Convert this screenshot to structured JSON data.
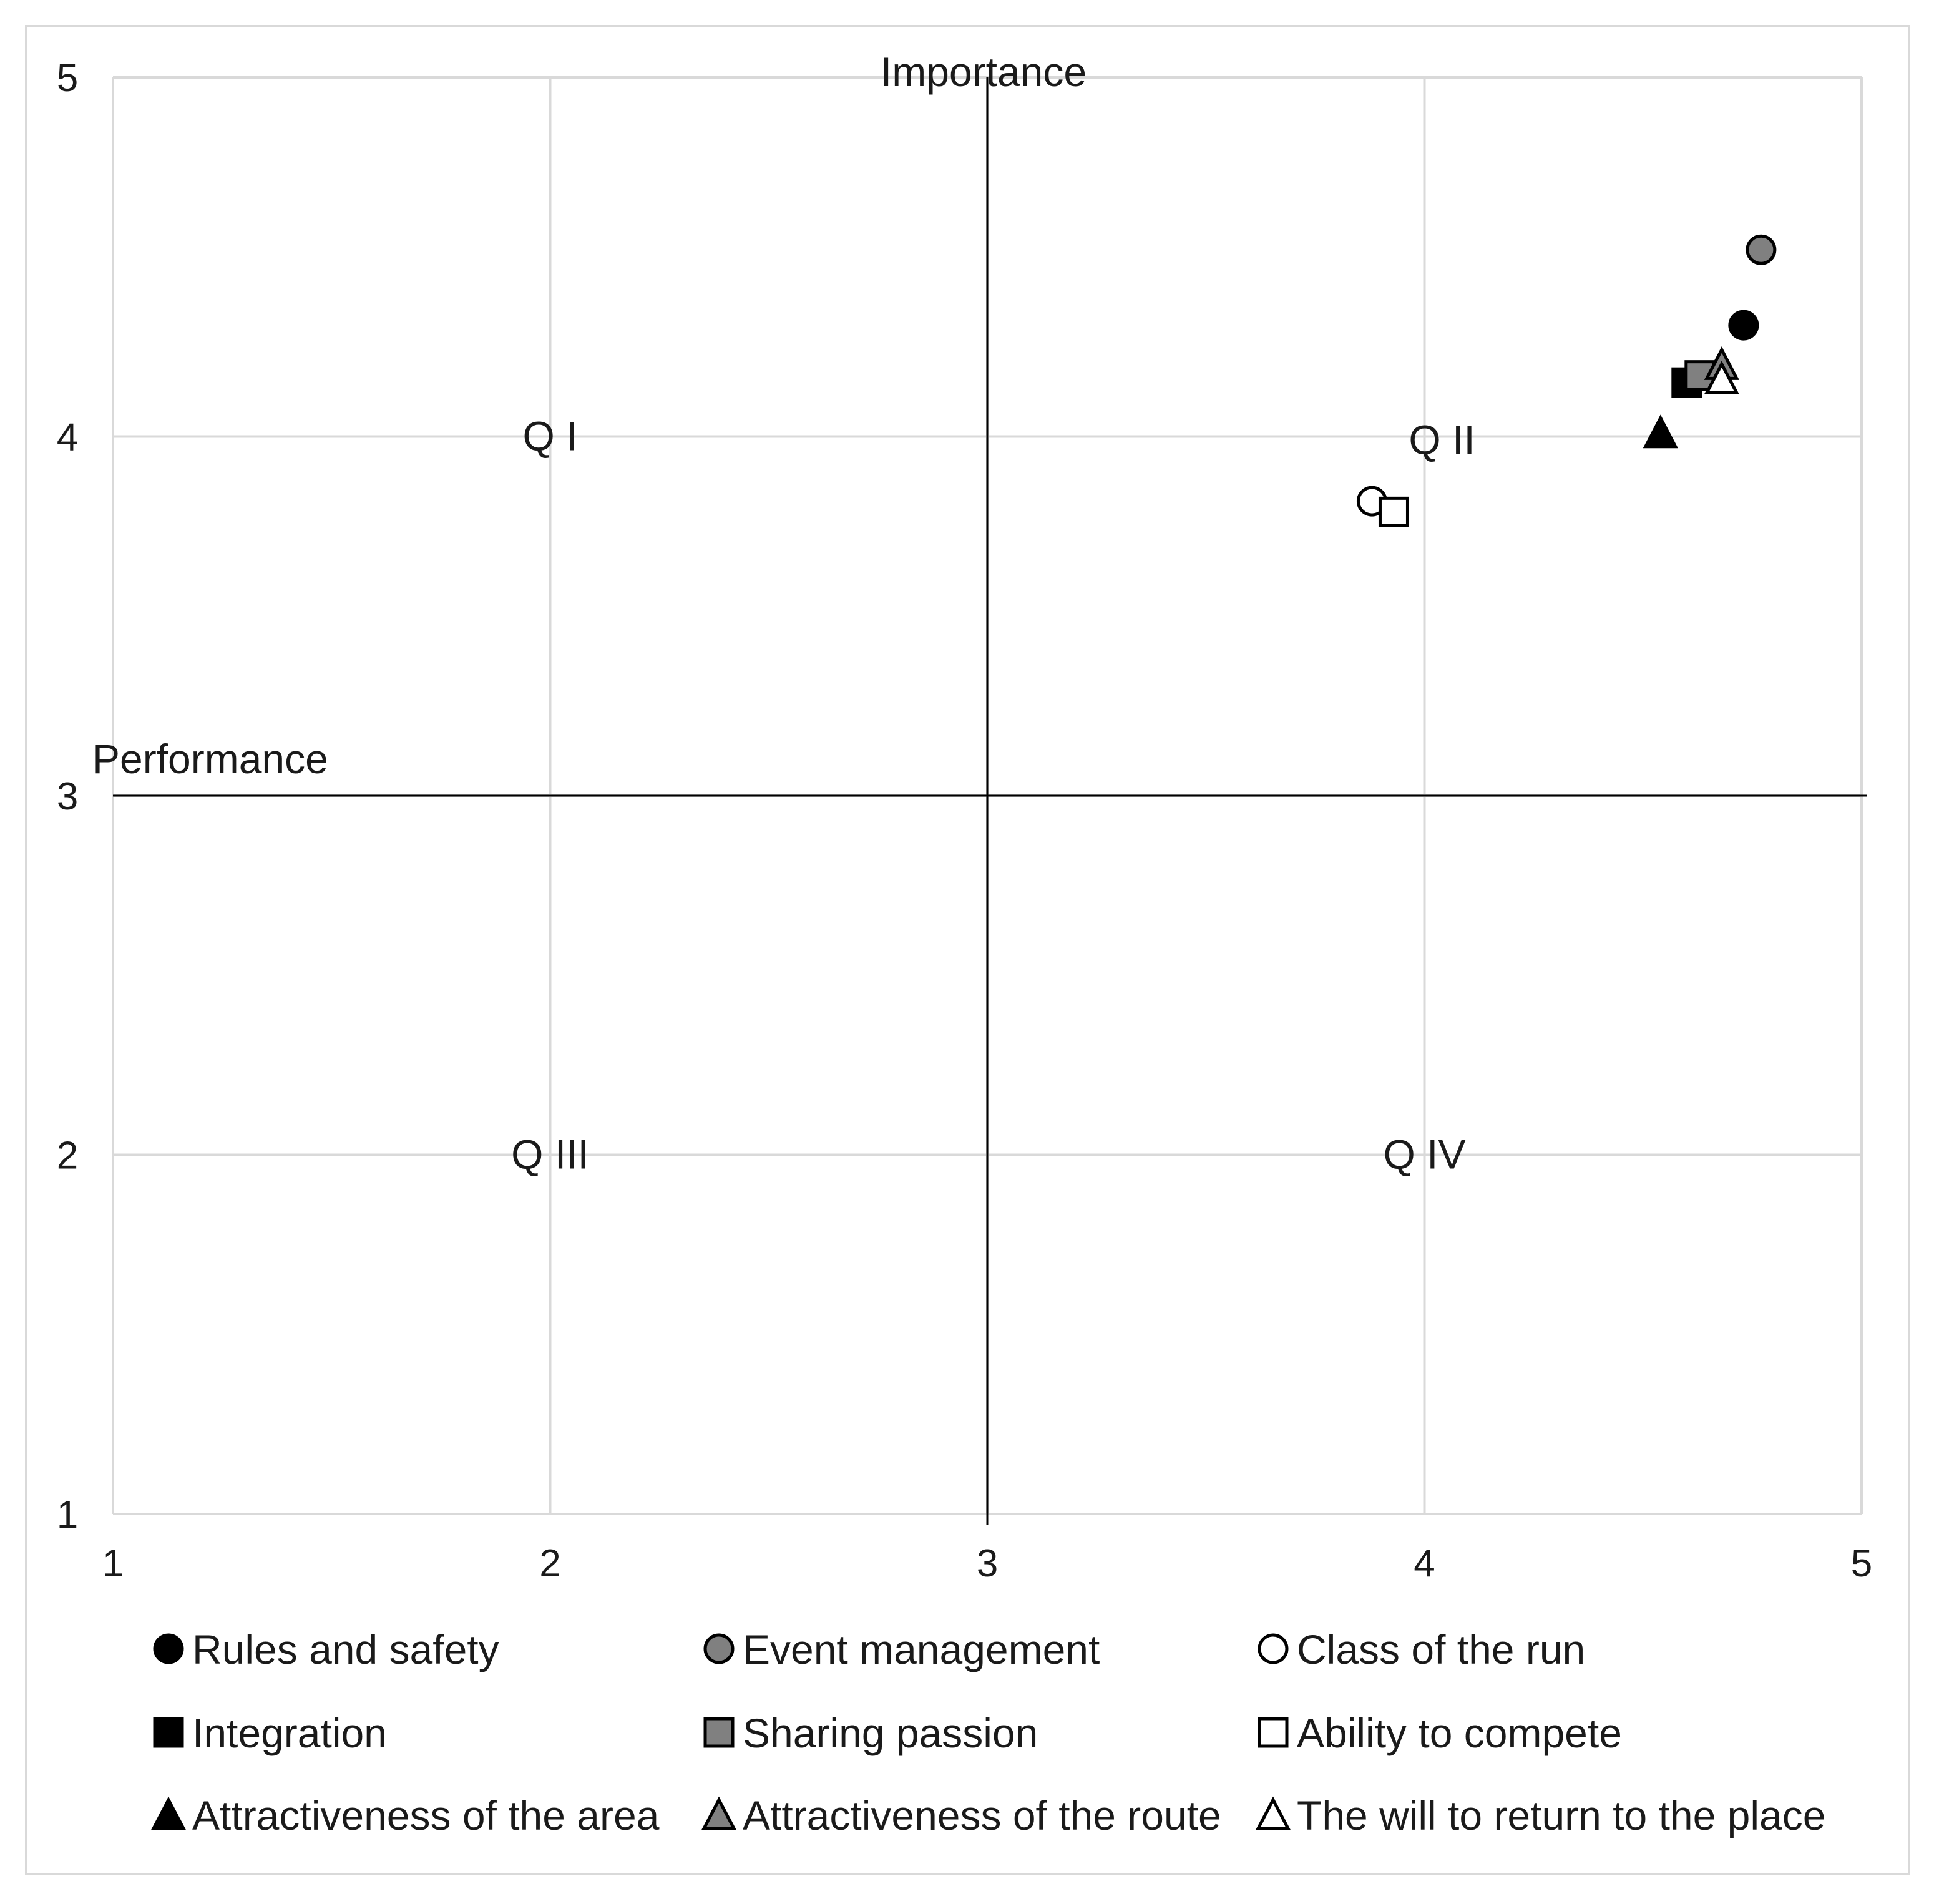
{
  "chart_data": {
    "type": "scatter",
    "title": "",
    "x_axis": {
      "min": 1,
      "max": 5,
      "ticks": [
        "1",
        "2",
        "3",
        "4",
        "5"
      ]
    },
    "y_axis": {
      "min": 1,
      "max": 5,
      "ticks": [
        "1",
        "2",
        "3",
        "4",
        "5"
      ]
    },
    "grid": true,
    "reference_lines": {
      "x": 3,
      "y": 3
    },
    "axis_titles": {
      "vertical": "Importance",
      "horizontal": "Performance"
    },
    "quadrants": [
      {
        "label": "Q I",
        "x": 2,
        "y": 4
      },
      {
        "label": "Q II",
        "x": 4.04,
        "y": 3.99
      },
      {
        "label": "Q III",
        "x": 2,
        "y": 2
      },
      {
        "label": "Q IV",
        "x": 4,
        "y": 2
      }
    ],
    "series": [
      {
        "name": "Rules and safety",
        "marker": "circle",
        "fill": "#000000",
        "x": 4.73,
        "y": 4.31
      },
      {
        "name": "Event management",
        "marker": "circle",
        "fill": "#808080",
        "x": 4.77,
        "y": 4.52
      },
      {
        "name": "Class of the run",
        "marker": "circle",
        "fill": "#ffffff",
        "x": 3.88,
        "y": 3.82
      },
      {
        "name": "Integration",
        "marker": "square",
        "fill": "#000000",
        "x": 4.6,
        "y": 4.15
      },
      {
        "name": "Sharing passion",
        "marker": "square",
        "fill": "#808080",
        "x": 4.63,
        "y": 4.17
      },
      {
        "name": "Ability to compete",
        "marker": "square",
        "fill": "#ffffff",
        "x": 3.93,
        "y": 3.79
      },
      {
        "name": "Attractiveness of the area",
        "marker": "triangle",
        "fill": "#000000",
        "x": 4.54,
        "y": 4.01
      },
      {
        "name": "Attractiveness of the route",
        "marker": "triangle",
        "fill": "#808080",
        "x": 4.68,
        "y": 4.2
      },
      {
        "name": "The will to return to the place",
        "marker": "triangle",
        "fill": "#ffffff",
        "x": 4.68,
        "y": 4.16
      }
    ],
    "legend_position": "bottom",
    "legend_columns": 3
  },
  "colors": {
    "grid": "#d9d9d9",
    "reference": "#000000",
    "marker_stroke": "#000000"
  }
}
